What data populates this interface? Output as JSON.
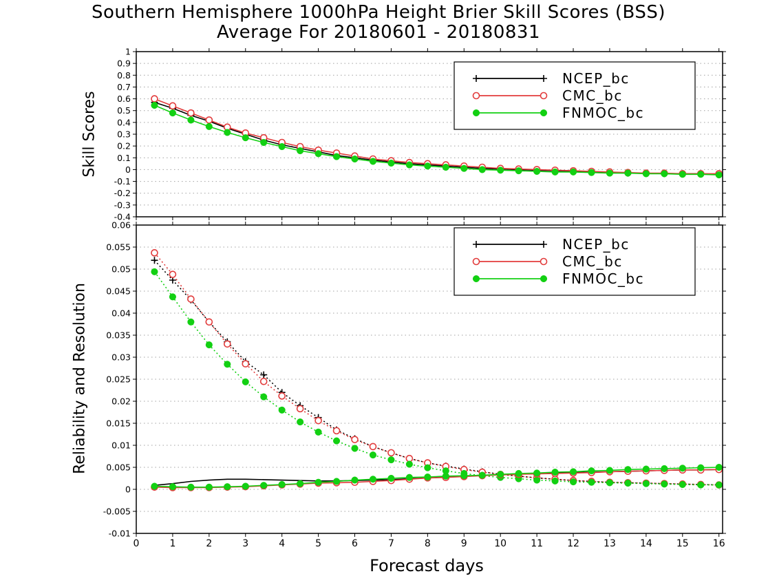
{
  "title": {
    "line1": "Southern Hemisphere 1000hPa Height Brier Skill Scores (BSS)",
    "line2": "Average For 20180601 - 20180831"
  },
  "colors": {
    "ncep": "#000000",
    "cmc": "#e23c3c",
    "fnmoc": "#12d012"
  },
  "legend_placement": "top-right",
  "xlabel": "Forecast days",
  "xticks": [
    "0",
    "1",
    "2",
    "3",
    "4",
    "5",
    "6",
    "7",
    "8",
    "9",
    "10",
    "11",
    "12",
    "13",
    "14",
    "15",
    "16"
  ],
  "chart_data": [
    {
      "type": "line",
      "ylabel": "Skill Scores",
      "xlim": [
        0,
        16.1
      ],
      "ylim": [
        -0.4,
        1
      ],
      "yticks": [
        "1",
        "0.9",
        "0.8",
        "0.7",
        "0.6",
        "0.5",
        "0.4",
        "0.3",
        "0.2",
        "0.1",
        "0",
        "-0.1",
        "-0.2",
        "-0.3",
        "-0.4"
      ],
      "grid": true,
      "legend": [
        "NCEP_bc",
        "CMC_bc",
        "FNMOC_bc"
      ],
      "x": [
        0.5,
        1,
        1.5,
        2,
        2.5,
        3,
        3.5,
        4,
        4.5,
        5,
        5.5,
        6,
        6.5,
        7,
        7.5,
        8,
        8.5,
        9,
        9.5,
        10,
        10.5,
        11,
        11.5,
        12,
        12.5,
        13,
        13.5,
        14,
        14.5,
        15,
        15.5,
        16
      ],
      "series": [
        {
          "name": "NCEP_bc",
          "marker": "plus",
          "color": "#000000",
          "values": [
            0.57,
            0.52,
            0.46,
            0.41,
            0.35,
            0.3,
            0.25,
            0.21,
            0.18,
            0.15,
            0.12,
            0.1,
            0.08,
            0.065,
            0.05,
            0.04,
            0.03,
            0.02,
            0.01,
            0.005,
            0.0,
            -0.005,
            -0.01,
            -0.015,
            -0.02,
            -0.025,
            -0.03,
            -0.03,
            -0.035,
            -0.035,
            -0.035,
            -0.04
          ]
        },
        {
          "name": "CMC_bc",
          "marker": "circle-open",
          "color": "#e23c3c",
          "values": [
            0.6,
            0.54,
            0.48,
            0.42,
            0.36,
            0.31,
            0.27,
            0.23,
            0.195,
            0.165,
            0.14,
            0.115,
            0.09,
            0.075,
            0.06,
            0.05,
            0.04,
            0.03,
            0.02,
            0.01,
            0.005,
            0.0,
            -0.005,
            -0.01,
            -0.015,
            -0.02,
            -0.025,
            -0.03,
            -0.03,
            -0.035,
            -0.035,
            -0.035
          ]
        },
        {
          "name": "FNMOC_bc",
          "marker": "circle-filled",
          "color": "#12d012",
          "values": [
            0.545,
            0.48,
            0.42,
            0.365,
            0.315,
            0.27,
            0.23,
            0.195,
            0.16,
            0.135,
            0.11,
            0.09,
            0.07,
            0.055,
            0.04,
            0.03,
            0.02,
            0.01,
            0.0,
            -0.005,
            -0.01,
            -0.015,
            -0.02,
            -0.02,
            -0.025,
            -0.03,
            -0.03,
            -0.035,
            -0.035,
            -0.04,
            -0.04,
            -0.045
          ]
        }
      ]
    },
    {
      "type": "line",
      "ylabel": "Reliability and Resolution",
      "xlim": [
        0,
        16.1
      ],
      "ylim": [
        -0.01,
        0.06
      ],
      "yticks": [
        "0.06",
        "0.055",
        "0.05",
        "0.045",
        "0.04",
        "0.035",
        "0.03",
        "0.025",
        "0.02",
        "0.015",
        "0.01",
        "0.005",
        "0",
        "-0.005",
        "-0.01"
      ],
      "grid": true,
      "legend": [
        "NCEP_bc",
        "CMC_bc",
        "FNMOC_bc"
      ],
      "x": [
        0.5,
        1,
        1.5,
        2,
        2.5,
        3,
        3.5,
        4,
        4.5,
        5,
        5.5,
        6,
        6.5,
        7,
        7.5,
        8,
        8.5,
        9,
        9.5,
        10,
        10.5,
        11,
        11.5,
        12,
        12.5,
        13,
        13.5,
        14,
        14.5,
        15,
        15.5,
        16
      ],
      "series": [
        {
          "name": "NCEP_bc",
          "kind": "resolution",
          "style": "dotted",
          "marker": "plus",
          "color": "#000000",
          "values": [
            0.052,
            0.0475,
            0.043,
            0.038,
            0.0335,
            0.029,
            0.026,
            0.022,
            0.019,
            0.0163,
            0.0135,
            0.0115,
            0.0097,
            0.0083,
            0.007,
            0.006,
            0.0053,
            0.0046,
            0.004,
            0.0034,
            0.003,
            0.0026,
            0.0023,
            0.002,
            0.0018,
            0.0016,
            0.0015,
            0.0014,
            0.0013,
            0.0012,
            0.0011,
            0.001
          ]
        },
        {
          "name": "CMC_bc",
          "kind": "resolution",
          "style": "dotted",
          "marker": "circle-open",
          "color": "#e23c3c",
          "values": [
            0.0537,
            0.0488,
            0.0432,
            0.038,
            0.033,
            0.0285,
            0.0245,
            0.0212,
            0.0183,
            0.0156,
            0.0133,
            0.0113,
            0.0097,
            0.0083,
            0.007,
            0.006,
            0.0052,
            0.0045,
            0.0039,
            0.0034,
            0.003,
            0.0026,
            0.0023,
            0.002,
            0.0018,
            0.0016,
            0.0015,
            0.0014,
            0.0013,
            0.0012,
            0.0011,
            0.001
          ]
        },
        {
          "name": "FNMOC_bc",
          "kind": "resolution",
          "style": "dotted",
          "marker": "circle-filled",
          "color": "#12d012",
          "values": [
            0.0494,
            0.0437,
            0.038,
            0.0328,
            0.0284,
            0.0244,
            0.021,
            0.018,
            0.0153,
            0.013,
            0.011,
            0.0093,
            0.0078,
            0.0067,
            0.0057,
            0.0049,
            0.0042,
            0.0036,
            0.0031,
            0.0027,
            0.0024,
            0.0021,
            0.0019,
            0.0017,
            0.0016,
            0.0015,
            0.0014,
            0.0013,
            0.0012,
            0.0011,
            0.001,
            0.001
          ]
        },
        {
          "name": "NCEP_bc",
          "kind": "reliability",
          "style": "solid",
          "marker": "none",
          "color": "#000000",
          "values": [
            0.0009,
            0.0013,
            0.0018,
            0.0021,
            0.0023,
            0.0023,
            0.0022,
            0.0021,
            0.002,
            0.0019,
            0.0019,
            0.002,
            0.0021,
            0.0022,
            0.0024,
            0.0026,
            0.0028,
            0.003,
            0.0032,
            0.0033,
            0.0035,
            0.0036,
            0.0037,
            0.0038,
            0.0039,
            0.004,
            0.0041,
            0.0042,
            0.0043,
            0.0044,
            0.0044,
            0.0045
          ]
        },
        {
          "name": "CMC_bc",
          "kind": "reliability",
          "style": "solid",
          "marker": "circle-open",
          "color": "#e23c3c",
          "values": [
            0.0005,
            0.0004,
            0.0004,
            0.0004,
            0.0005,
            0.0006,
            0.0008,
            0.001,
            0.0012,
            0.0014,
            0.0015,
            0.0016,
            0.0018,
            0.002,
            0.0023,
            0.0026,
            0.0027,
            0.0029,
            0.0031,
            0.0033,
            0.0034,
            0.0035,
            0.0036,
            0.0037,
            0.0038,
            0.004,
            0.0041,
            0.0042,
            0.0043,
            0.0044,
            0.0044,
            0.0045
          ]
        },
        {
          "name": "FNMOC_bc",
          "kind": "reliability",
          "style": "solid",
          "marker": "circle-filled",
          "color": "#12d012",
          "values": [
            0.0007,
            0.0006,
            0.0005,
            0.0005,
            0.0006,
            0.0007,
            0.0009,
            0.0011,
            0.0013,
            0.0016,
            0.0018,
            0.0021,
            0.0023,
            0.0025,
            0.0027,
            0.0028,
            0.003,
            0.0031,
            0.0032,
            0.0034,
            0.0036,
            0.0037,
            0.0039,
            0.004,
            0.0042,
            0.0043,
            0.0045,
            0.0046,
            0.0047,
            0.0048,
            0.0049,
            0.005
          ]
        }
      ]
    }
  ]
}
